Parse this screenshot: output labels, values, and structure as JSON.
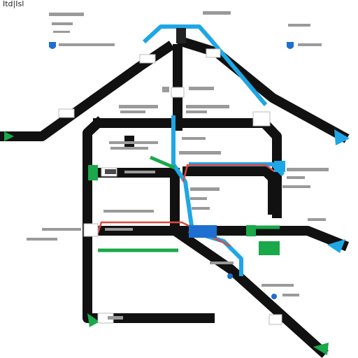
{
  "title": "Itd|Isl",
  "colors": {
    "track": "#111111",
    "blue": "#1ea7e6",
    "green": "#19a84a",
    "red": "#e0483e",
    "label": "#9a9a9a"
  },
  "icons": [
    "shield-icon",
    "pin-icon",
    "badge-icon",
    "node-icon"
  ]
}
